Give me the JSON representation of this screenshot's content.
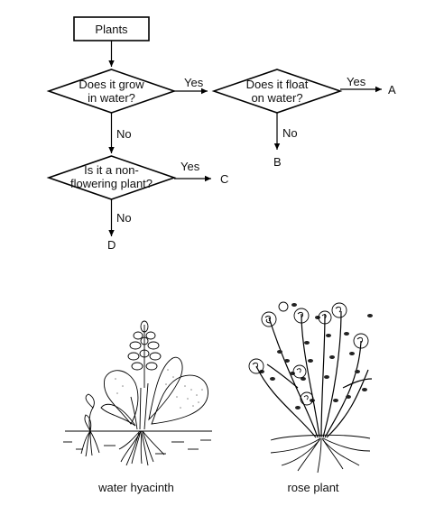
{
  "flowchart": {
    "start": "Plants",
    "q1": {
      "line1": "Does it grow",
      "line2": "in water?"
    },
    "q2": {
      "line1": "Does it float",
      "line2": "on water?"
    },
    "q3": {
      "line1": "Is it a non-",
      "line2": "flowering plant?"
    },
    "yes_label": "Yes",
    "no_label": "No",
    "outcomes": {
      "a": "A",
      "b": "B",
      "c": "C",
      "d": "D"
    }
  },
  "illustrations": {
    "left_caption": "water hyacinth",
    "right_caption": "rose plant"
  }
}
